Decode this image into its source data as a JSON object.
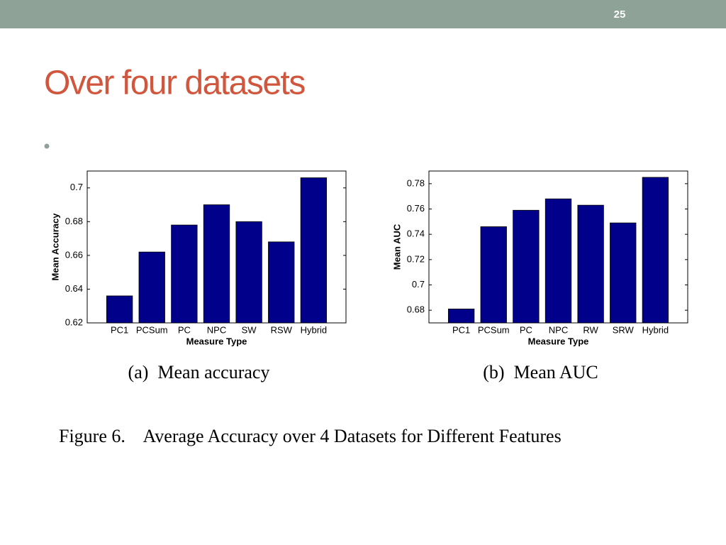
{
  "slide": {
    "number": "25",
    "title": "Over four datasets"
  },
  "figure_caption": "Figure 6.    Average Accuracy over 4 Datasets for Different Features",
  "chart_data": [
    {
      "type": "bar",
      "caption": "(a)  Mean accuracy",
      "x_label": "Measure Type",
      "y_label": "Mean Accuracy",
      "categories": [
        "PC1",
        "PCSum",
        "PC",
        "NPC",
        "SW",
        "RSW",
        "Hybrid"
      ],
      "values": [
        0.636,
        0.662,
        0.678,
        0.69,
        0.68,
        0.668,
        0.706
      ],
      "color": "#00008b",
      "ylim": [
        0.62,
        0.71
      ],
      "yticks": [
        0.62,
        0.64,
        0.66,
        0.68,
        0.7
      ]
    },
    {
      "type": "bar",
      "caption": "(b)  Mean AUC",
      "x_label": "Measure Type",
      "y_label": "Mean AUC",
      "categories": [
        "PC1",
        "PCSum",
        "PC",
        "NPC",
        "RW",
        "SRW",
        "Hybrid"
      ],
      "values": [
        0.681,
        0.746,
        0.759,
        0.768,
        0.763,
        0.749,
        0.785
      ],
      "color": "#00008b",
      "ylim": [
        0.67,
        0.79
      ],
      "yticks": [
        0.68,
        0.7,
        0.72,
        0.74,
        0.76,
        0.78
      ]
    }
  ]
}
